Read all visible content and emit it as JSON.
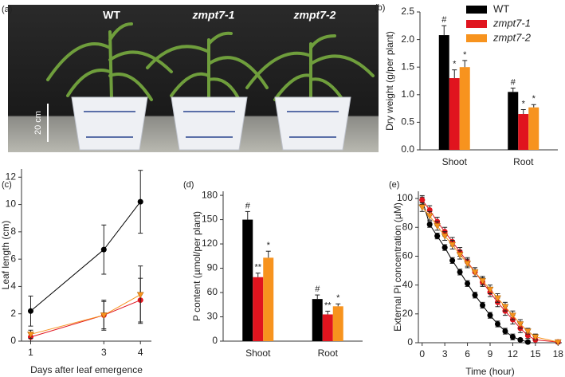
{
  "photo": {
    "panel_label": "(a)",
    "labels": [
      "WT",
      "zmpt7-1",
      "zmpt7-2"
    ],
    "scale_bar": "20 cm"
  },
  "chart_data": [
    {
      "type": "bar",
      "panel_label": "(b)",
      "ylabel": "Dry weight (g/per plant)",
      "categories": [
        "Shoot",
        "Root"
      ],
      "ylim": [
        0,
        2.5
      ],
      "yticks": [
        {
          "value": 0,
          "label": "0.0"
        },
        {
          "value": 0.5,
          "label": "0.5"
        },
        {
          "value": 1,
          "label": "1.0"
        },
        {
          "value": 1.5,
          "label": "1.5"
        },
        {
          "value": 2,
          "label": "2.0"
        },
        {
          "value": 2.5,
          "label": "2.5"
        }
      ],
      "legend": "upper right",
      "series": [
        {
          "name": "WT",
          "color": "#000000",
          "values": [
            2.08,
            1.05
          ],
          "errors": [
            0.17,
            0.07
          ],
          "annotations": [
            "#",
            "#"
          ]
        },
        {
          "name": "zmpt7-1",
          "color": "#e0141e",
          "values": [
            1.3,
            0.65
          ],
          "errors": [
            0.15,
            0.08
          ],
          "annotations": [
            "*",
            "*"
          ]
        },
        {
          "name": "zmpt7-2",
          "color": "#f7931e",
          "values": [
            1.5,
            0.77
          ],
          "errors": [
            0.12,
            0.05
          ],
          "annotations": [
            "*",
            "*"
          ]
        }
      ]
    },
    {
      "type": "line",
      "panel_label": "(c)",
      "xlabel": "Days after leaf emergence",
      "ylabel": "Leaf length (cm)",
      "x": [
        1,
        3,
        4
      ],
      "xlim": [
        0.75,
        4.3
      ],
      "xticks": [
        1,
        3,
        4
      ],
      "ylim": [
        0,
        12.6
      ],
      "yticks": [
        0,
        2,
        4,
        6,
        8,
        10,
        12
      ],
      "series": [
        {
          "color": "#000000",
          "marker": "circle",
          "values": [
            2.2,
            6.7,
            10.2
          ],
          "errors": [
            1.1,
            1.8,
            2.3
          ]
        },
        {
          "color": "#e0141e",
          "marker": "circle",
          "values": [
            0.3,
            1.9,
            3.0
          ],
          "errors": [
            0.3,
            1.0,
            1.6
          ]
        },
        {
          "color": "#f7931e",
          "marker": "triangle-down",
          "values": [
            0.5,
            1.9,
            3.4
          ],
          "errors": [
            0.3,
            1.1,
            2.1
          ]
        }
      ]
    },
    {
      "type": "bar",
      "panel_label": "(d)",
      "ylabel": "P content (µmol/per plant)",
      "categories": [
        "Shoot",
        "Root"
      ],
      "ylim": [
        0,
        185
      ],
      "yticks": [
        0,
        30,
        60,
        90,
        120,
        150,
        180
      ],
      "series": [
        {
          "color": "#000000",
          "values": [
            150,
            52
          ],
          "errors": [
            10,
            5
          ],
          "annotations": [
            "#",
            "#"
          ]
        },
        {
          "color": "#e0141e",
          "values": [
            79,
            33
          ],
          "errors": [
            5,
            4
          ],
          "annotations": [
            "**",
            "**"
          ]
        },
        {
          "color": "#f7931e",
          "values": [
            103,
            43
          ],
          "errors": [
            8,
            3
          ],
          "annotations": [
            "*",
            "*"
          ]
        }
      ]
    },
    {
      "type": "line",
      "panel_label": "(e)",
      "xlabel": "Time (hour)",
      "ylabel": "External Pi concentration (µM)",
      "x": [
        0,
        1,
        2,
        3,
        4,
        5,
        6,
        7,
        8,
        9,
        10,
        11,
        12,
        13,
        14,
        15,
        18
      ],
      "xlim": [
        -0.5,
        18.5
      ],
      "xticks": [
        0,
        3,
        6,
        9,
        12,
        15,
        18
      ],
      "ylim": [
        0,
        105
      ],
      "yticks": [
        0,
        20,
        40,
        60,
        80,
        100
      ],
      "series": [
        {
          "color": "#000000",
          "marker": "circle",
          "values": [
            99,
            82,
            74,
            66,
            57,
            49,
            41,
            33,
            26,
            19,
            13,
            8,
            4,
            2,
            0.5,
            null,
            null
          ],
          "errors": [
            2,
            2,
            2,
            2,
            2,
            2,
            2,
            2,
            2,
            2,
            2,
            2,
            2,
            1,
            1,
            null,
            null
          ]
        },
        {
          "color": "#e0141e",
          "marker": "circle",
          "values": [
            99,
            92,
            84,
            77,
            70,
            63,
            56,
            49,
            42,
            35,
            28,
            22,
            16,
            10,
            5,
            2,
            0.5
          ],
          "errors": [
            3,
            3,
            3,
            3,
            3,
            3,
            3,
            3,
            3,
            3,
            3,
            3,
            3,
            3,
            2,
            2,
            1
          ]
        },
        {
          "color": "#f7931e",
          "marker": "triangle-down",
          "values": [
            94,
            88,
            81,
            74,
            68,
            61,
            55,
            49,
            43,
            37,
            31,
            25,
            19,
            13,
            8,
            4,
            0.5
          ],
          "errors": [
            3,
            3,
            3,
            3,
            3,
            3,
            3,
            3,
            3,
            3,
            3,
            3,
            3,
            3,
            2,
            2,
            1
          ]
        }
      ]
    }
  ]
}
